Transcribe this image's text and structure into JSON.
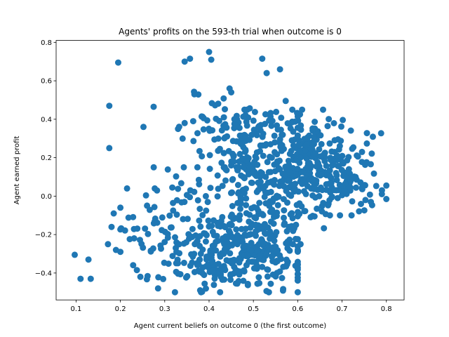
{
  "chart_data": {
    "type": "scatter",
    "title": "Agents' profits on the 593-th trial when outcome is 0",
    "xlabel": "Agent current beliefs on outcome 0 (the first outcome)",
    "ylabel": "Agent earned profit",
    "xlim": [
      0.055,
      0.84
    ],
    "ylim": [
      -0.54,
      0.81
    ],
    "xticks": [
      "0.1",
      "0.2",
      "0.3",
      "0.4",
      "0.5",
      "0.6",
      "0.7",
      "0.8"
    ],
    "yticks": [
      "−0.4",
      "−0.2",
      "0.0",
      "0.2",
      "0.4",
      "0.6",
      "0.8"
    ],
    "grid": false,
    "color": "#1f77b4",
    "outliers": [
      [
        0.097,
        -0.305
      ],
      [
        0.11,
        -0.43
      ],
      [
        0.128,
        -0.33
      ],
      [
        0.133,
        -0.43
      ],
      [
        0.172,
        -0.25
      ],
      [
        0.175,
        0.47
      ],
      [
        0.175,
        0.25
      ],
      [
        0.195,
        0.695
      ],
      [
        0.252,
        0.36
      ],
      [
        0.275,
        0.465
      ],
      [
        0.345,
        0.7
      ],
      [
        0.357,
        0.715
      ],
      [
        0.367,
        0.53
      ],
      [
        0.4,
        0.75
      ],
      [
        0.405,
        0.71
      ],
      [
        0.52,
        0.715
      ],
      [
        0.56,
        0.66
      ],
      [
        0.53,
        0.64
      ],
      [
        0.185,
        -0.09
      ],
      [
        0.18,
        -0.16
      ],
      [
        0.19,
        -0.28
      ],
      [
        0.2,
        -0.06
      ],
      [
        0.215,
        0.04
      ],
      [
        0.245,
        -0.42
      ],
      [
        0.285,
        -0.48
      ],
      [
        0.745,
        0.23
      ],
      [
        0.79,
        0.03
      ],
      [
        0.8,
        0.055
      ],
      [
        0.55,
        -0.345
      ],
      [
        0.345,
        0.38
      ],
      [
        0.45,
        0.54
      ]
    ],
    "clusters": [
      {
        "cx": 0.48,
        "cy": -0.3,
        "sx": 0.075,
        "sy": 0.1,
        "n": 330,
        "xmin": 0.2,
        "xmax": 0.6,
        "ymin": -0.5,
        "ymax": 0.0
      },
      {
        "cx": 0.53,
        "cy": 0.06,
        "sx": 0.07,
        "sy": 0.15,
        "n": 240,
        "xmin": 0.3,
        "xmax": 0.7,
        "ymin": -0.25,
        "ymax": 0.4
      },
      {
        "cx": 0.63,
        "cy": 0.18,
        "sx": 0.06,
        "sy": 0.13,
        "n": 220,
        "xmin": 0.48,
        "xmax": 0.8,
        "ymin": -0.1,
        "ymax": 0.45
      },
      {
        "cx": 0.47,
        "cy": 0.34,
        "sx": 0.06,
        "sy": 0.12,
        "n": 110,
        "xmin": 0.33,
        "xmax": 0.6,
        "ymin": 0.15,
        "ymax": 0.56
      },
      {
        "cx": 0.3,
        "cy": -0.12,
        "sx": 0.05,
        "sy": 0.14,
        "n": 70,
        "xmin": 0.2,
        "xmax": 0.4,
        "ymin": -0.45,
        "ymax": 0.15
      },
      {
        "cx": 0.72,
        "cy": 0.08,
        "sx": 0.04,
        "sy": 0.09,
        "n": 60,
        "xmin": 0.62,
        "xmax": 0.8,
        "ymin": -0.1,
        "ymax": 0.27
      }
    ]
  }
}
